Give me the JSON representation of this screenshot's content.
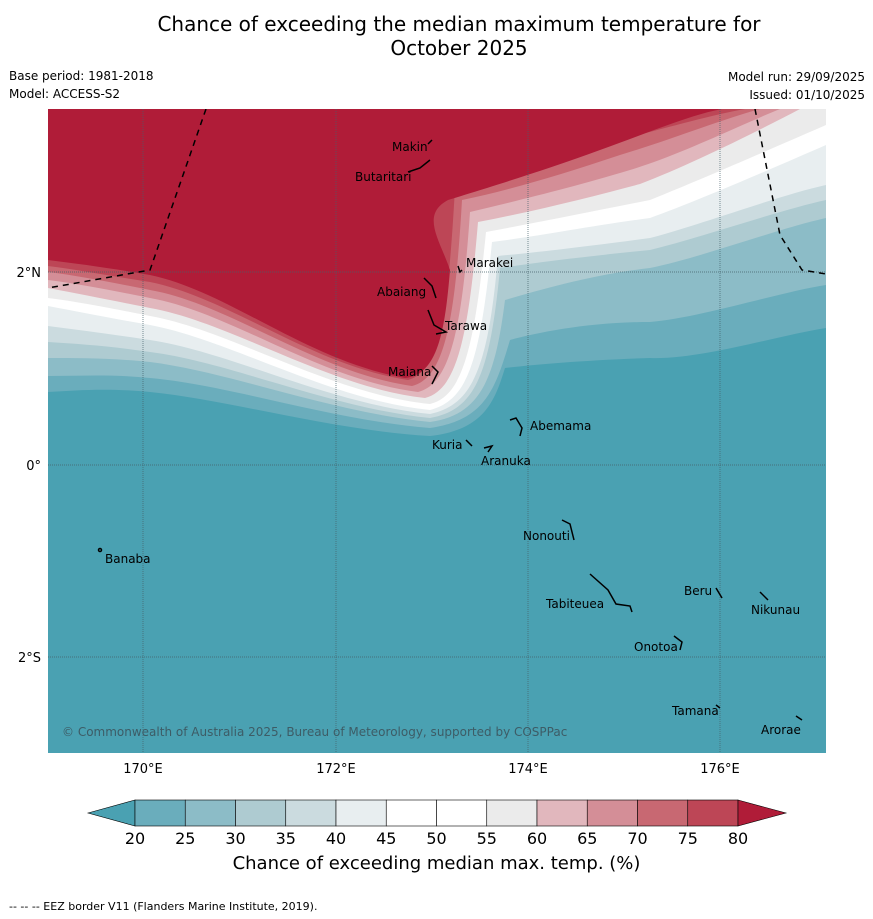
{
  "title_line1": "Chance of exceeding the median maximum temperature for",
  "title_line2": "October 2025",
  "base_period": "Base period: 1981-2018",
  "model": "Model: ACCESS-S2",
  "model_run": "Model run: 29/09/2025",
  "issued": "Issued: 01/10/2025",
  "copyright": "© Commonwealth of Australia 2025, Bureau of Meteorology, supported by COSPPac",
  "footer": "--  --  -- EEZ border V11 (Flanders Marine Institute, 2019).",
  "axes": {
    "x_ticks": [
      "170°E",
      "172°E",
      "174°E",
      "176°E"
    ],
    "y_ticks": [
      "2°N",
      "0°",
      "2°S"
    ]
  },
  "places": [
    {
      "name": "Makin"
    },
    {
      "name": "Butaritari"
    },
    {
      "name": "Marakei"
    },
    {
      "name": "Abaiang"
    },
    {
      "name": "Tarawa"
    },
    {
      "name": "Maiana"
    },
    {
      "name": "Abemama"
    },
    {
      "name": "Kuria"
    },
    {
      "name": "Aranuka"
    },
    {
      "name": "Nonouti"
    },
    {
      "name": "Banaba"
    },
    {
      "name": "Tabiteuea"
    },
    {
      "name": "Beru"
    },
    {
      "name": "Nikunau"
    },
    {
      "name": "Onotoa"
    },
    {
      "name": "Tamana"
    },
    {
      "name": "Arorae"
    }
  ],
  "colorbar": {
    "title": "Chance of exceeding median max. temp. (%)",
    "ticks": [
      "20",
      "25",
      "30",
      "35",
      "40",
      "45",
      "50",
      "55",
      "60",
      "65",
      "70",
      "75",
      "80"
    ],
    "colors": {
      "below_20": "#4aa1b2",
      "20_25": "#6aadbc",
      "25_30": "#8cbcc7",
      "30_35": "#aecbd1",
      "35_40": "#cbdbdf",
      "40_45": "#e8eef0",
      "45_50": "#ffffff",
      "50_55": "#ffffff",
      "55_60": "#ebebeb",
      "60_65": "#e1b7bd",
      "65_70": "#d48e97",
      "70_75": "#c86872",
      "75_80": "#bd4656",
      "above_80": "#b01c38"
    }
  }
}
